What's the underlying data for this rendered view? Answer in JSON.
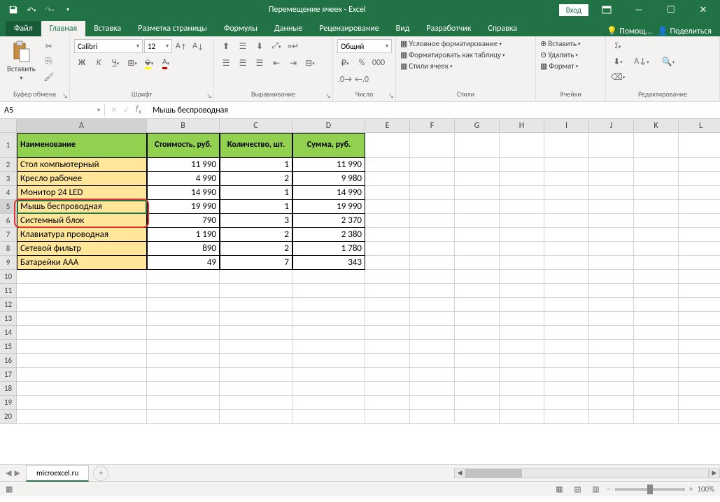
{
  "title": "Перемещение ячеек  -  Excel",
  "login_label": "Вход",
  "tabs": {
    "file": "Файл",
    "home": "Главная",
    "insert": "Вставка",
    "layout": "Разметка страницы",
    "formulas": "Формулы",
    "data": "Данные",
    "review": "Рецензирование",
    "view": "Вид",
    "developer": "Разработчик",
    "help": "Справка",
    "tell_me": "Помощ...",
    "share": "Поделиться"
  },
  "ribbon": {
    "clipboard": {
      "label": "Буфер обмена",
      "paste": "Вставить"
    },
    "font": {
      "label": "Шрифт",
      "name": "Calibri",
      "size": "12"
    },
    "alignment": {
      "label": "Выравнивание"
    },
    "number": {
      "label": "Число",
      "format": "Общий"
    },
    "styles": {
      "label": "Стили",
      "cond": "Условное форматирование",
      "table": "Форматировать как таблицу",
      "cell": "Стили ячеек"
    },
    "cells": {
      "label": "Ячейки",
      "insert": "Вставить",
      "delete": "Удалить",
      "format": "Формат"
    },
    "editing": {
      "label": "Редактирование"
    }
  },
  "name_box": "A5",
  "formula": "Мышь беспроводная",
  "columns": [
    "A",
    "B",
    "C",
    "D",
    "E",
    "F",
    "G",
    "H",
    "I",
    "J",
    "K",
    "L"
  ],
  "headers": {
    "A": "Наименование",
    "B": "Стоимость, руб.",
    "C": "Количество, шт.",
    "D": "Сумма, руб."
  },
  "rows": [
    {
      "n": "Стол компьютерный",
      "c": "11 990",
      "q": "1",
      "s": "11 990"
    },
    {
      "n": "Кресло рабочее",
      "c": "4 990",
      "q": "2",
      "s": "9 980"
    },
    {
      "n": "Монитор 24 LED",
      "c": "14 990",
      "q": "1",
      "s": "14 990"
    },
    {
      "n": "Мышь беспроводная",
      "c": "19 990",
      "q": "1",
      "s": "19 990"
    },
    {
      "n": "Системный блок",
      "c": "790",
      "q": "3",
      "s": "2 370"
    },
    {
      "n": "Клавиатура проводная",
      "c": "1 190",
      "q": "2",
      "s": "2 380"
    },
    {
      "n": "Сетевой фильтр",
      "c": "890",
      "q": "2",
      "s": "1 780"
    },
    {
      "n": "Батарейки AAA",
      "c": "49",
      "q": "7",
      "s": "343"
    }
  ],
  "sheet_tab": "microexcel.ru",
  "zoom": "100%",
  "colors": {
    "header_bg": "#92d050",
    "name_col_bg": "#ffe699",
    "app_green": "#217346",
    "highlight_red": "#e03030"
  }
}
